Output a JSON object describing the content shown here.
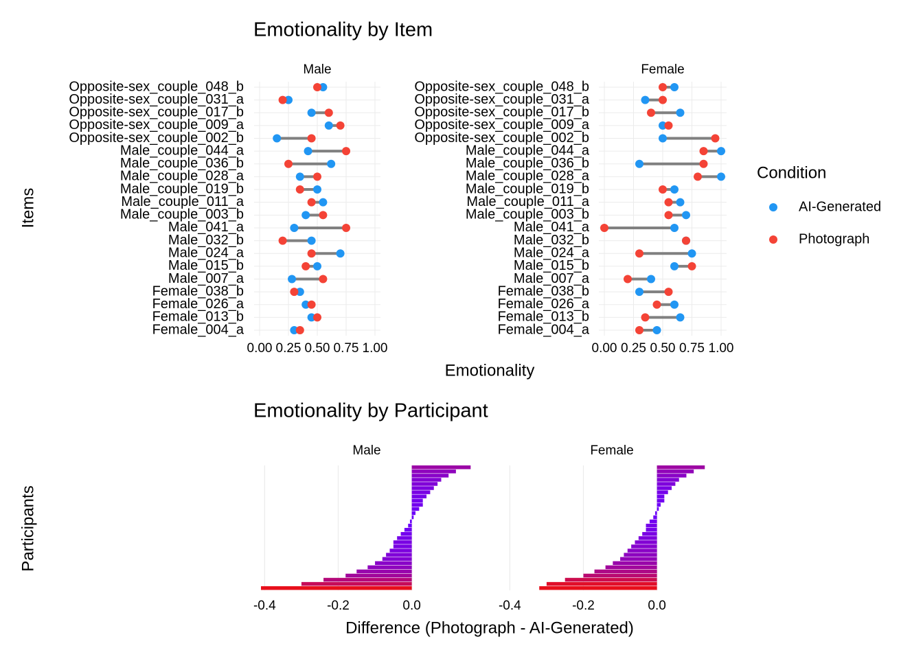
{
  "chart_data": [
    {
      "type": "dumbbell",
      "title": "Emotionality by Item",
      "x_label": "Emotionality",
      "y_label": "Items",
      "legend_title": "Condition",
      "xlim": [
        0,
        1
      ],
      "xticks": [
        {
          "value": 0,
          "label": "0.00"
        },
        {
          "value": 0.25,
          "label": "0.25"
        },
        {
          "value": 0.5,
          "label": "0.50"
        },
        {
          "value": 0.75,
          "label": "0.75"
        },
        {
          "value": 1,
          "label": "1.00"
        }
      ],
      "series_style": [
        {
          "name": "AI-Generated",
          "color": "#2196F3"
        },
        {
          "name": "Photograph",
          "color": "#F44336"
        }
      ],
      "facets": [
        {
          "name": "Male",
          "categories": [
            "Opposite-sex_couple_048_b",
            "Opposite-sex_couple_031_a",
            "Opposite-sex_couple_017_b",
            "Opposite-sex_couple_009_a",
            "Opposite-sex_couple_002_b",
            "Male_couple_044_a",
            "Male_couple_036_b",
            "Male_couple_028_a",
            "Male_couple_019_b",
            "Male_couple_011_a",
            "Male_couple_003_b",
            "Male_041_a",
            "Male_032_b",
            "Male_024_a",
            "Male_015_b",
            "Male_007_a",
            "Female_038_b",
            "Female_026_a",
            "Female_013_b",
            "Female_004_a"
          ],
          "series": [
            {
              "name": "AI-Generated",
              "values": [
                0.55,
                0.25,
                0.45,
                0.6,
                0.15,
                0.42,
                0.62,
                0.35,
                0.5,
                0.55,
                0.4,
                0.3,
                0.45,
                0.7,
                0.5,
                0.28,
                0.35,
                0.4,
                0.45,
                0.3
              ]
            },
            {
              "name": "Photograph",
              "values": [
                0.5,
                0.2,
                0.6,
                0.7,
                0.45,
                0.75,
                0.25,
                0.5,
                0.35,
                0.45,
                0.55,
                0.75,
                0.2,
                0.45,
                0.4,
                0.55,
                0.3,
                0.45,
                0.5,
                0.35
              ]
            }
          ]
        },
        {
          "name": "Female",
          "categories": [
            "Opposite-sex_couple_048_b",
            "Opposite-sex_couple_031_a",
            "Opposite-sex_couple_017_b",
            "Opposite-sex_couple_009_a",
            "Opposite-sex_couple_002_b",
            "Male_couple_044_a",
            "Male_couple_036_b",
            "Male_couple_028_a",
            "Male_couple_019_b",
            "Male_couple_011_a",
            "Male_couple_003_b",
            "Male_041_a",
            "Male_032_b",
            "Male_024_a",
            "Male_015_b",
            "Male_007_a",
            "Female_038_b",
            "Female_026_a",
            "Female_013_b",
            "Female_004_a"
          ],
          "series": [
            {
              "name": "AI-Generated",
              "values": [
                0.6,
                0.35,
                0.65,
                0.5,
                0.5,
                1.0,
                0.3,
                1.0,
                0.6,
                0.65,
                0.7,
                0.6,
                0.7,
                0.75,
                0.6,
                0.4,
                0.3,
                0.6,
                0.65,
                0.45
              ]
            },
            {
              "name": "Photograph",
              "values": [
                0.5,
                0.5,
                0.4,
                0.55,
                0.95,
                0.85,
                0.85,
                0.8,
                0.5,
                0.55,
                0.55,
                0.0,
                0.7,
                0.3,
                0.75,
                0.2,
                0.55,
                0.45,
                0.35,
                0.3
              ]
            }
          ]
        }
      ]
    },
    {
      "type": "bar",
      "title": "Emotionality by Participant",
      "x_label": "Difference (Photograph - AI-Generated)",
      "y_label": "Participants",
      "xlim": [
        -0.41,
        0.165
      ],
      "xticks": [
        -0.4,
        -0.2,
        {
          "value": 0,
          "label": "0.0"
        }
      ],
      "gradient": [
        "#6a00ff",
        "#e8101c"
      ],
      "facets": [
        {
          "name": "Male",
          "values": [
            0.16,
            0.12,
            0.1,
            0.08,
            0.07,
            0.06,
            0.05,
            0.04,
            0.03,
            0.03,
            0.02,
            0.01,
            0.005,
            -0.005,
            -0.01,
            -0.02,
            -0.03,
            -0.04,
            -0.05,
            -0.05,
            -0.06,
            -0.07,
            -0.08,
            -0.1,
            -0.12,
            -0.15,
            -0.18,
            -0.24,
            -0.3,
            -0.41
          ]
        },
        {
          "name": "Female",
          "values": [
            0.13,
            0.1,
            0.08,
            0.06,
            0.05,
            0.04,
            0.03,
            0.02,
            0.02,
            0.01,
            0.005,
            -0.005,
            -0.01,
            -0.02,
            -0.03,
            -0.03,
            -0.04,
            -0.05,
            -0.06,
            -0.07,
            -0.08,
            -0.09,
            -0.1,
            -0.12,
            -0.14,
            -0.17,
            -0.2,
            -0.25,
            -0.3,
            -0.32
          ]
        }
      ]
    }
  ]
}
